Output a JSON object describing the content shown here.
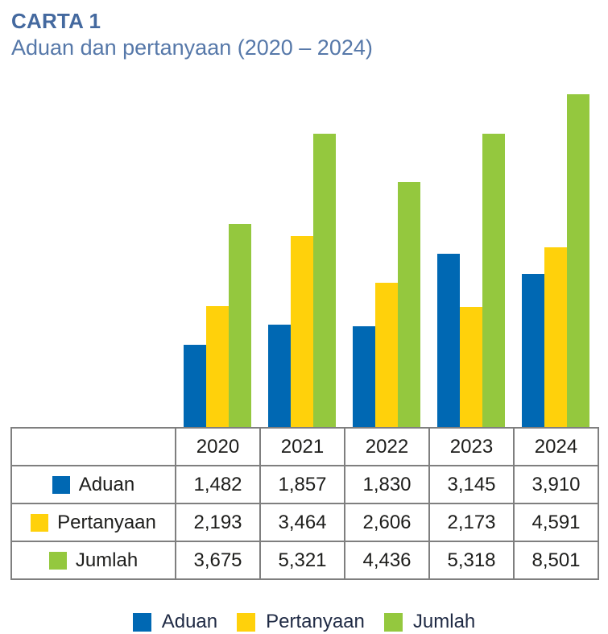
{
  "header": {
    "kicker": "CARTA 1",
    "title": "Aduan dan pertanyaan (2020 – 2024)"
  },
  "colors": {
    "aduan": "#0068b3",
    "pertanyaan": "#ffd10b",
    "jumlah": "#94c83e",
    "kicker_blue": "#44699f",
    "title_blue": "#5678a9"
  },
  "chart_data": {
    "type": "bar",
    "title": "Aduan dan pertanyaan (2020 – 2024)",
    "categories": [
      "2020",
      "2021",
      "2022",
      "2023",
      "2024"
    ],
    "series": [
      {
        "name": "Aduan",
        "color_key": "aduan",
        "values": [
          1482,
          1857,
          1830,
          3145,
          3910
        ]
      },
      {
        "name": "Pertanyaan",
        "color_key": "pertanyaan",
        "values": [
          2193,
          3464,
          2606,
          2173,
          4591
        ]
      },
      {
        "name": "Jumlah",
        "color_key": "jumlah",
        "values": [
          3675,
          5321,
          4436,
          5318,
          8501
        ]
      }
    ],
    "xlabel": "",
    "ylabel": "",
    "ylim": [
      0,
      8501
    ],
    "grid": false,
    "y_axis_visible": false,
    "legend_position": "bottom",
    "x_axis_rendered_as_table_header": true
  },
  "table": {
    "corner_label": "",
    "columns": [
      "2020",
      "2021",
      "2022",
      "2023",
      "2024"
    ],
    "rows": [
      {
        "label": "Aduan",
        "color_key": "aduan",
        "values": [
          "1,482",
          "1,857",
          "1,830",
          "3,145",
          "3,910"
        ]
      },
      {
        "label": "Pertanyaan",
        "color_key": "pertanyaan",
        "values": [
          "2,193",
          "3,464",
          "2,606",
          "2,173",
          "4,591"
        ]
      },
      {
        "label": "Jumlah",
        "color_key": "jumlah",
        "values": [
          "3,675",
          "5,321",
          "4,436",
          "5,318",
          "8,501"
        ]
      }
    ]
  },
  "legend": {
    "items": [
      {
        "label": "Aduan",
        "color_key": "aduan"
      },
      {
        "label": "Pertanyaan",
        "color_key": "pertanyaan"
      },
      {
        "label": "Jumlah",
        "color_key": "jumlah"
      }
    ]
  }
}
